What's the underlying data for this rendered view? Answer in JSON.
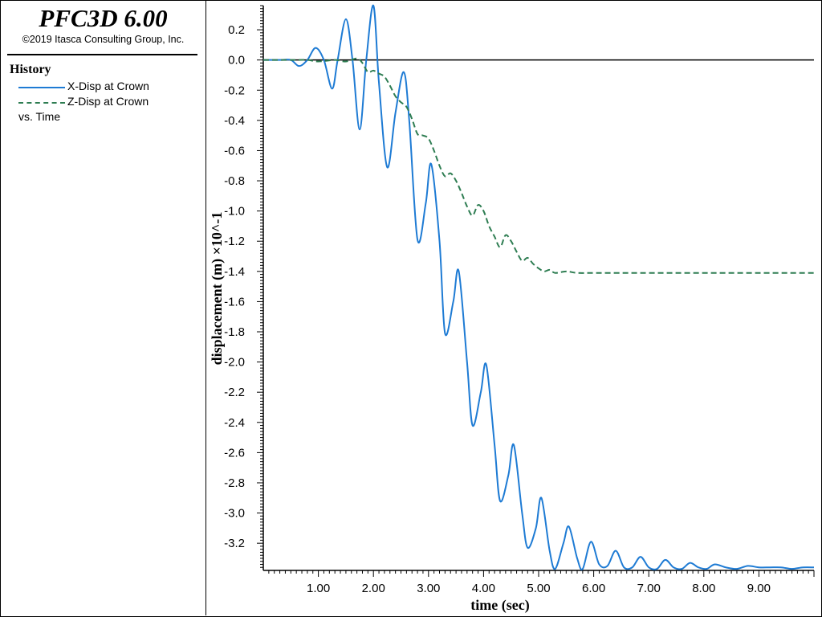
{
  "app": {
    "title": "PFC3D 6.00",
    "copyright": "©2019 Itasca Consulting Group, Inc."
  },
  "legend": {
    "heading": "History",
    "items": [
      {
        "label": "X-Disp at Crown",
        "color": "#1e7bd4",
        "style": "solid"
      },
      {
        "label": "Z-Disp at Crown",
        "color": "#2e7d52",
        "style": "dashed"
      }
    ],
    "footer": "vs. Time"
  },
  "chart_data": {
    "type": "line",
    "xlabel": "time (sec)",
    "ylabel": "displacement (m) ×10^-1",
    "xlim": [
      0,
      10
    ],
    "ylim": [
      -3.38,
      0.36
    ],
    "xticks": [
      "1.00",
      "2.00",
      "3.00",
      "4.00",
      "5.00",
      "6.00",
      "7.00",
      "8.00",
      "9.00"
    ],
    "yticks": [
      "0.2",
      "0.0",
      "-0.2",
      "-0.4",
      "-0.6",
      "-0.8",
      "-1.0",
      "-1.2",
      "-1.4",
      "-1.6",
      "-1.8",
      "-2.0",
      "-2.2",
      "-2.4",
      "-2.6",
      "-2.8",
      "-3.0",
      "-3.2"
    ],
    "zero_line": true,
    "grid": false,
    "series": [
      {
        "name": "X-Disp at Crown",
        "color": "#1e7bd4",
        "dash": "solid",
        "x": [
          0,
          0.3,
          0.5,
          0.65,
          0.8,
          0.95,
          1.1,
          1.25,
          1.35,
          1.5,
          1.62,
          1.75,
          1.87,
          2.0,
          2.1,
          2.25,
          2.4,
          2.55,
          2.65,
          2.8,
          2.95,
          3.05,
          3.2,
          3.3,
          3.45,
          3.55,
          3.7,
          3.8,
          3.95,
          4.05,
          4.2,
          4.3,
          4.45,
          4.55,
          4.7,
          4.8,
          4.95,
          5.05,
          5.2,
          5.3,
          5.45,
          5.55,
          5.7,
          5.8,
          5.95,
          6.1,
          6.25,
          6.4,
          6.55,
          6.7,
          6.85,
          7.0,
          7.15,
          7.3,
          7.45,
          7.6,
          7.75,
          7.9,
          8.05,
          8.2,
          8.4,
          8.6,
          8.8,
          9.0,
          9.2,
          9.4,
          9.6,
          9.8,
          10.0
        ],
        "y": [
          0,
          0,
          0.0,
          -0.04,
          0.0,
          0.08,
          0.0,
          -0.19,
          0.0,
          0.27,
          0.0,
          -0.46,
          0.0,
          0.36,
          -0.15,
          -0.71,
          -0.35,
          -0.08,
          -0.4,
          -1.19,
          -0.95,
          -0.69,
          -1.2,
          -1.81,
          -1.6,
          -1.4,
          -2.0,
          -2.42,
          -2.2,
          -2.02,
          -2.55,
          -2.92,
          -2.75,
          -2.55,
          -3.0,
          -3.23,
          -3.1,
          -2.9,
          -3.25,
          -3.37,
          -3.2,
          -3.09,
          -3.3,
          -3.37,
          -3.19,
          -3.34,
          -3.35,
          -3.25,
          -3.36,
          -3.36,
          -3.29,
          -3.36,
          -3.37,
          -3.31,
          -3.36,
          -3.37,
          -3.33,
          -3.36,
          -3.37,
          -3.34,
          -3.36,
          -3.37,
          -3.35,
          -3.36,
          -3.36,
          -3.36,
          -3.37,
          -3.36,
          -3.36
        ]
      },
      {
        "name": "Z-Disp at Crown",
        "color": "#2e7d52",
        "dash": "dashed",
        "x": [
          0,
          0.5,
          0.8,
          1.0,
          1.3,
          1.5,
          1.7,
          1.8,
          1.9,
          2.0,
          2.1,
          2.2,
          2.3,
          2.4,
          2.5,
          2.6,
          2.7,
          2.8,
          2.9,
          3.0,
          3.1,
          3.2,
          3.3,
          3.4,
          3.5,
          3.6,
          3.7,
          3.8,
          3.9,
          4.0,
          4.1,
          4.2,
          4.3,
          4.4,
          4.5,
          4.6,
          4.7,
          4.8,
          4.9,
          5.0,
          5.1,
          5.2,
          5.3,
          5.5,
          5.7,
          6.0,
          6.5,
          7.0,
          8.0,
          9.0,
          10.0
        ],
        "y": [
          0,
          0,
          0,
          -0.01,
          0,
          -0.01,
          0.01,
          -0.02,
          -0.08,
          -0.07,
          -0.09,
          -0.11,
          -0.17,
          -0.24,
          -0.28,
          -0.31,
          -0.39,
          -0.49,
          -0.5,
          -0.52,
          -0.6,
          -0.7,
          -0.77,
          -0.75,
          -0.8,
          -0.88,
          -0.97,
          -1.03,
          -0.96,
          -1.0,
          -1.1,
          -1.17,
          -1.24,
          -1.16,
          -1.2,
          -1.27,
          -1.33,
          -1.31,
          -1.35,
          -1.38,
          -1.4,
          -1.39,
          -1.41,
          -1.4,
          -1.41,
          -1.41,
          -1.41,
          -1.41,
          -1.41,
          -1.41,
          -1.41
        ]
      }
    ]
  }
}
